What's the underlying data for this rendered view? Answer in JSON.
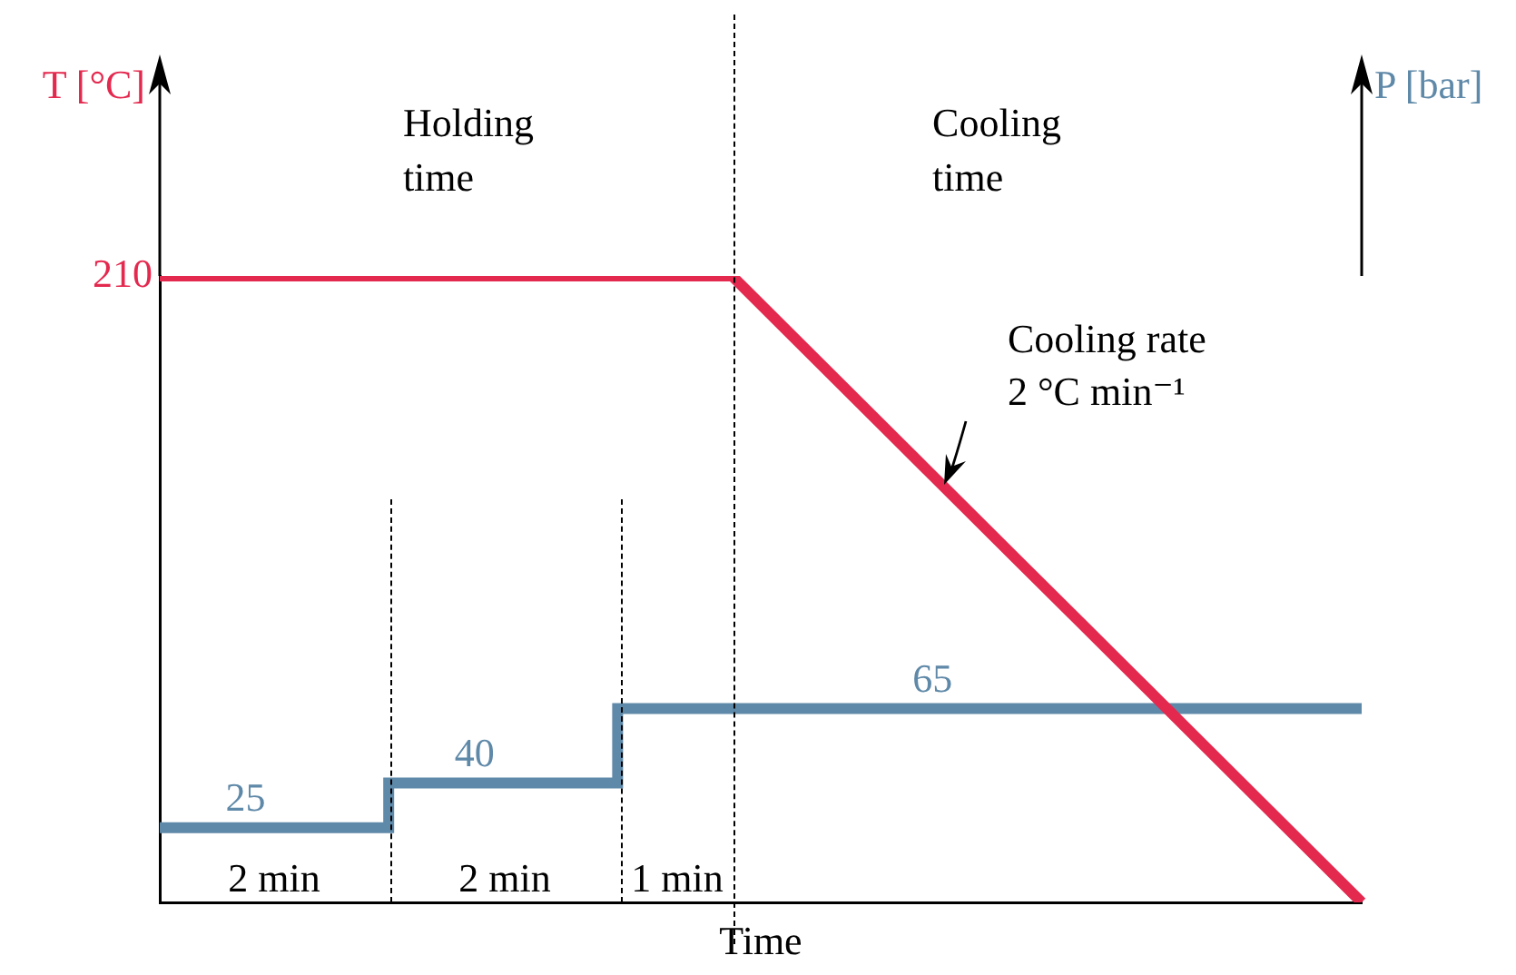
{
  "chart_data": {
    "type": "line",
    "xlabel": "Time",
    "legend": false,
    "marker": "none",
    "line_style": "solid",
    "categories": [
      null,
      null,
      null,
      null,
      null,
      null,
      null,
      null,
      null,
      null,
      null,
      null,
      null,
      null,
      null,
      null,
      null,
      null,
      null,
      null,
      null,
      null
    ],
    "series": [
      {
        "type": "line",
        "color": "#e4294f",
        "values": [
          210,
          210,
          210,
          210,
          210,
          210,
          210,
          210,
          210,
          210,
          210,
          190.9,
          171.8,
          152.7,
          133.6,
          114.5,
          95.5,
          76.4,
          57.3,
          38.2,
          19.1,
          0
        ],
        "value_labels": [
          "210",
          null,
          null,
          null,
          null,
          null,
          null,
          null,
          null,
          null,
          null,
          null,
          null,
          null,
          null,
          null,
          null,
          null,
          null,
          null,
          null,
          null
        ]
      },
      {
        "type": "step",
        "color": "#5f89a8",
        "values": [
          25,
          25,
          25,
          25,
          40,
          40,
          40,
          40,
          65,
          65,
          65,
          65,
          65,
          65,
          65,
          65,
          65,
          65,
          65,
          65,
          65,
          65
        ],
        "value_labels": [
          null,
          null,
          "25",
          null,
          null,
          null,
          "40",
          null,
          null,
          null,
          null,
          null,
          null,
          null,
          "65",
          null,
          null,
          null,
          null,
          null,
          null,
          null
        ]
      }
    ],
    "annotations": [
      "T [°C]",
      "P [bar]",
      "Holding time",
      "Cooling time",
      "Cooling rate 2 °C min⁻¹",
      "2 min",
      "2 min",
      "1 min"
    ]
  }
}
